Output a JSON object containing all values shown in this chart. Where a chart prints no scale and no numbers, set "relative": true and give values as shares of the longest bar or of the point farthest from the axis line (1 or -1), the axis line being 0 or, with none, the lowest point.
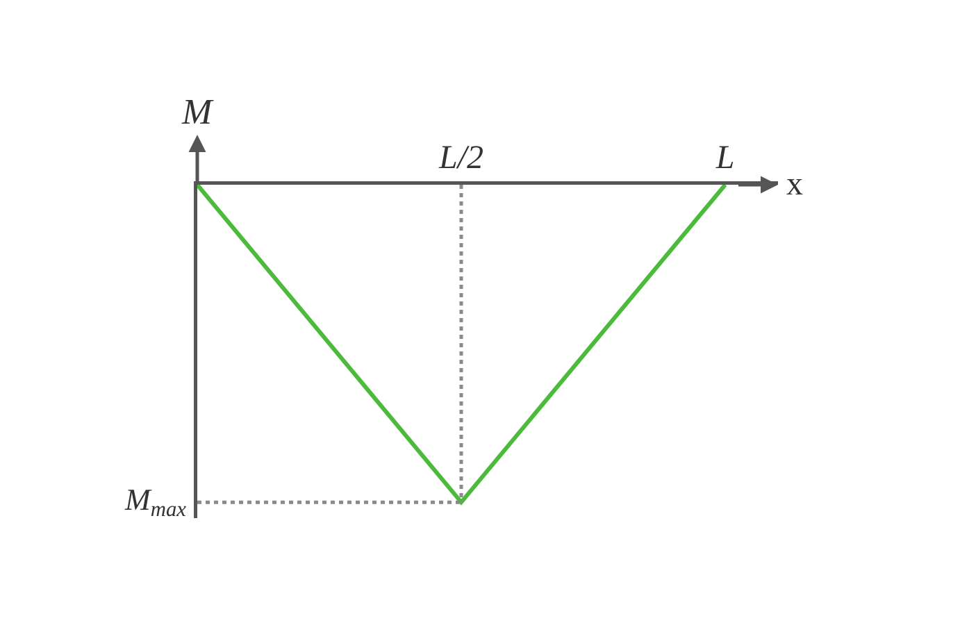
{
  "chart_data": {
    "type": "line",
    "relative": true,
    "xlabel": "x",
    "ylabel": "M",
    "categories": [
      null,
      "L/2",
      "L"
    ],
    "series": [
      {
        "color": "#4cbb3c",
        "values": [
          0,
          -1,
          0
        ]
      }
    ],
    "ref_lines": [
      {
        "axis": "x",
        "value": "L/2",
        "line_style": "dotted",
        "color": "#8a8a8a"
      },
      {
        "axis": "y",
        "value": -1,
        "line_style": "dotted",
        "color": "#8a8a8a",
        "label": "M$_{max}$"
      }
    ],
    "marker": "none",
    "line_style": "solid",
    "grid": false
  }
}
